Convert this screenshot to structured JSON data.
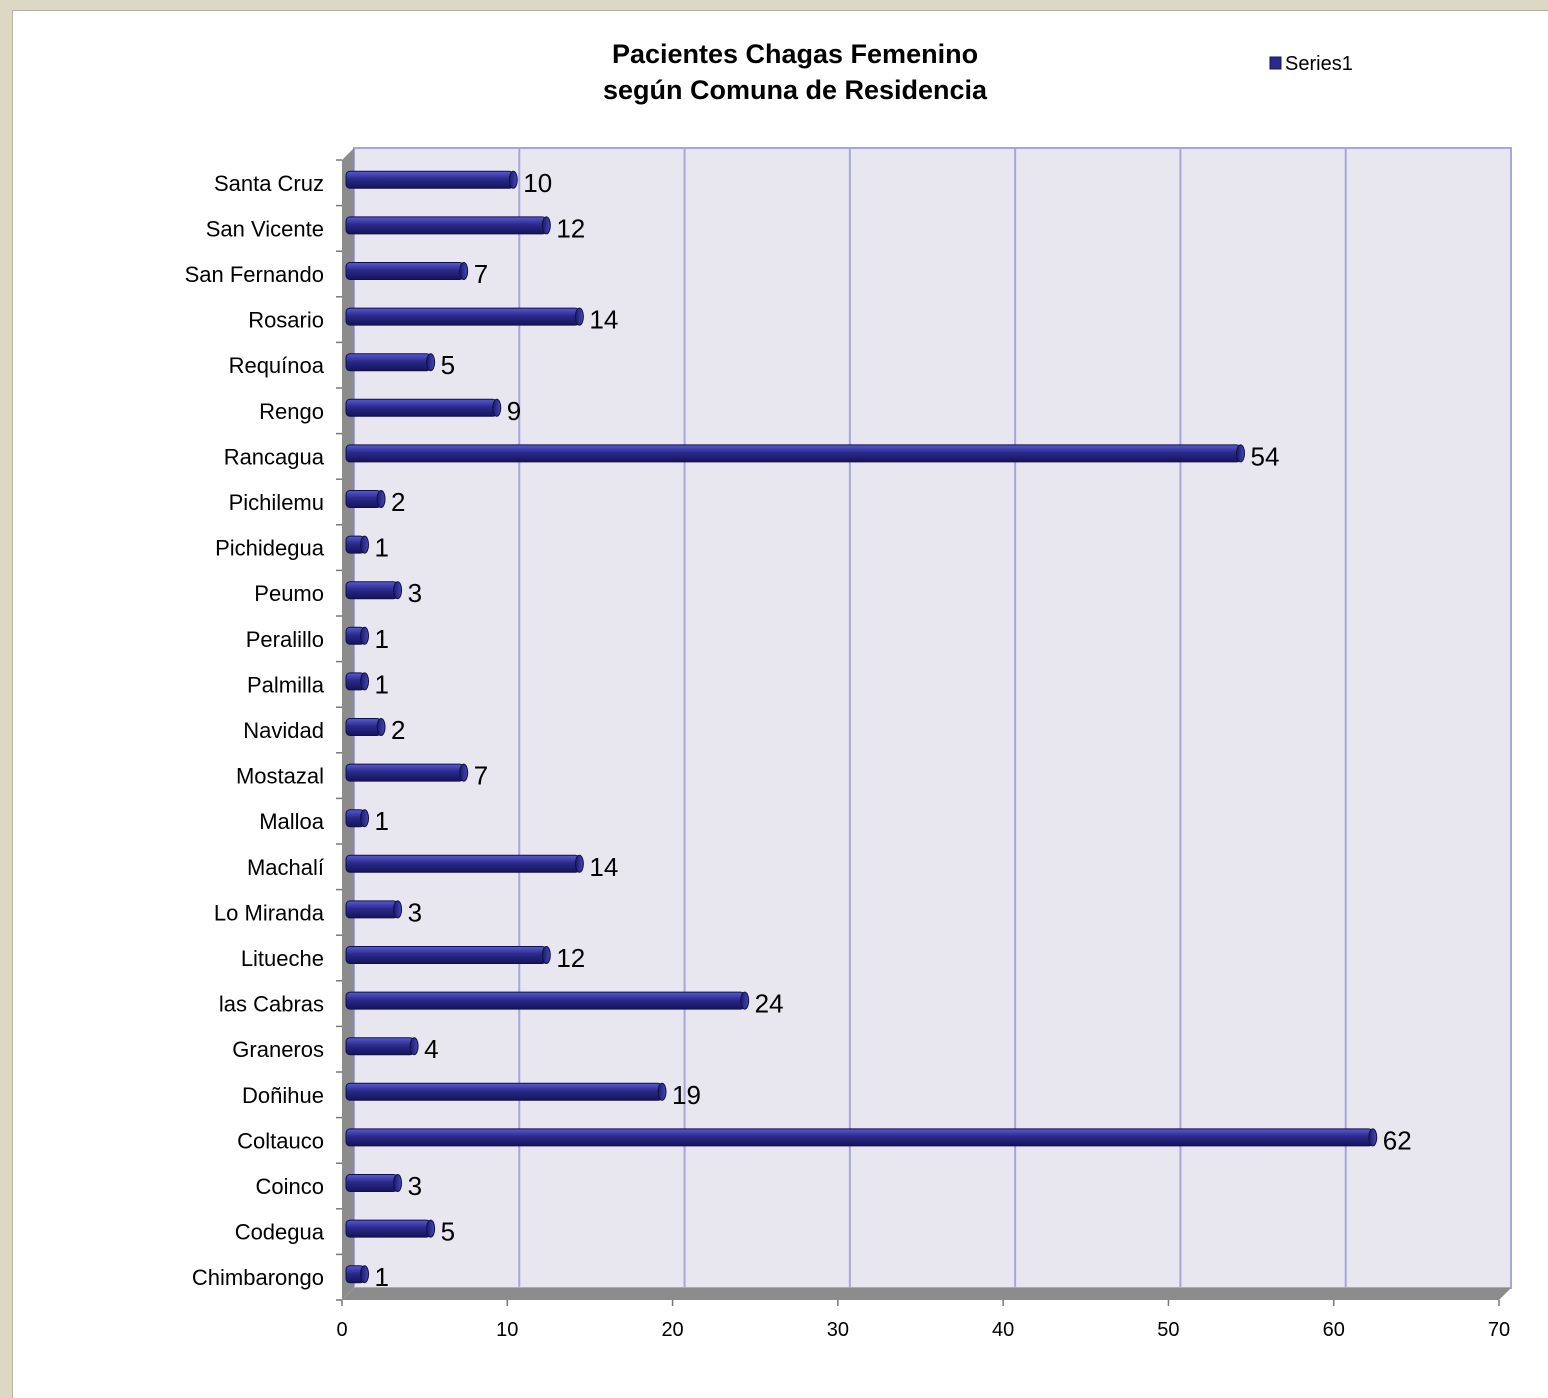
{
  "chart_data": {
    "type": "bar",
    "orientation": "horizontal",
    "title": "Pacientes Chagas Femenino",
    "subtitle": "según Comuna de Residencia",
    "xlim": [
      0,
      70
    ],
    "x_ticks": [
      0,
      10,
      20,
      30,
      40,
      50,
      60,
      70
    ],
    "grid": true,
    "legend_position": "top-right",
    "categories": [
      "Santa Cruz",
      "San Vicente",
      "San Fernando",
      "Rosario",
      "Requínoa",
      "Rengo",
      "Rancagua",
      "Pichilemu",
      "Pichidegua",
      "Peumo",
      "Peralillo",
      "Palmilla",
      "Navidad",
      "Mostazal",
      "Malloa",
      "Machalí",
      "Lo Miranda",
      "Litueche",
      "las Cabras",
      "Graneros",
      "Doñihue",
      "Coltauco",
      "Coinco",
      "Codegua",
      "Chimbarongo"
    ],
    "series": [
      {
        "name": "Series1",
        "color": "#2a2a8c",
        "values": [
          10,
          12,
          7,
          14,
          5,
          9,
          54,
          2,
          1,
          3,
          1,
          1,
          2,
          7,
          1,
          14,
          3,
          12,
          24,
          4,
          19,
          62,
          3,
          5,
          1
        ]
      }
    ]
  },
  "colors": {
    "plot_background": "#e8e7f0",
    "gridline": "#a6a6dd",
    "bar": "#2a2a8c",
    "bar_highlight": "#5a5ad0",
    "axis_wall": "#8c8c8c",
    "page_background": "#ddd8c4"
  }
}
